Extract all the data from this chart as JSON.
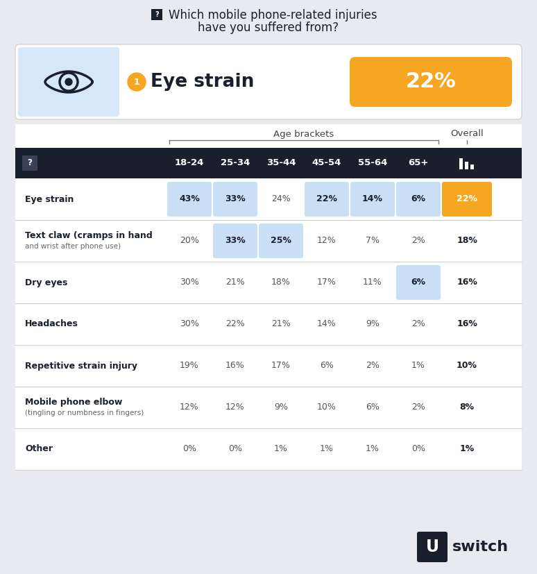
{
  "title_line1": "Which mobile phone-related injuries",
  "title_line2": "have you suffered from?",
  "featured_injury": "Eye strain",
  "featured_pct": "22%",
  "featured_rank": "1",
  "bg_color": "#e8eaf0",
  "table_bg": "#ffffff",
  "header_bg": "#1a1f2e",
  "col_headers": [
    "18-24",
    "25-34",
    "35-44",
    "45-54",
    "55-64",
    "65+"
  ],
  "overall_header": "Overall",
  "age_brackets_label": "Age brackets",
  "rows": [
    {
      "injury": "Eye strain",
      "injury2": "",
      "values": [
        "43%",
        "33%",
        "24%",
        "22%",
        "14%",
        "6%"
      ],
      "overall": "22%",
      "highlight_cols": [
        0,
        1,
        3,
        4,
        5
      ],
      "highlight_col_colors": [
        "#c8dff5",
        "#c8dff5",
        "#c8dff5",
        "#c8dff5",
        "#c8dff5"
      ],
      "overall_highlight": true,
      "overall_color": "#f5a623"
    },
    {
      "injury": "Text claw (cramps in hand",
      "injury2": "and wrist after phone use)",
      "values": [
        "20%",
        "33%",
        "25%",
        "12%",
        "7%",
        "2%"
      ],
      "overall": "18%",
      "highlight_cols": [
        1,
        2
      ],
      "highlight_col_colors": [
        "#c8dff5",
        "#c8dff5"
      ],
      "overall_highlight": false,
      "overall_color": null
    },
    {
      "injury": "Dry eyes",
      "injury2": "",
      "values": [
        "30%",
        "21%",
        "18%",
        "17%",
        "11%",
        "6%"
      ],
      "overall": "16%",
      "highlight_cols": [
        5
      ],
      "highlight_col_colors": [
        "#c8dff5"
      ],
      "overall_highlight": false,
      "overall_color": null
    },
    {
      "injury": "Headaches",
      "injury2": "",
      "values": [
        "30%",
        "22%",
        "21%",
        "14%",
        "9%",
        "2%"
      ],
      "overall": "16%",
      "highlight_cols": [],
      "highlight_col_colors": [],
      "overall_highlight": false,
      "overall_color": null
    },
    {
      "injury": "Repetitive strain injury",
      "injury2": "",
      "values": [
        "19%",
        "16%",
        "17%",
        "6%",
        "2%",
        "1%"
      ],
      "overall": "10%",
      "highlight_cols": [],
      "highlight_col_colors": [],
      "overall_highlight": false,
      "overall_color": null
    },
    {
      "injury": "Mobile phone elbow",
      "injury2": "(tingling or numbness in fingers)",
      "values": [
        "12%",
        "12%",
        "9%",
        "10%",
        "6%",
        "2%"
      ],
      "overall": "8%",
      "highlight_cols": [],
      "highlight_col_colors": [],
      "overall_highlight": false,
      "overall_color": null
    },
    {
      "injury": "Other",
      "injury2": "",
      "values": [
        "0%",
        "0%",
        "1%",
        "1%",
        "1%",
        "0%"
      ],
      "overall": "1%",
      "highlight_cols": [],
      "highlight_col_colors": [],
      "overall_highlight": false,
      "overall_color": null
    }
  ],
  "orange_color": "#f5a623",
  "light_blue_bg": "#d6e8f7",
  "dark_navy": "#1a1f2e",
  "highlight_blue": "#c8dff5"
}
